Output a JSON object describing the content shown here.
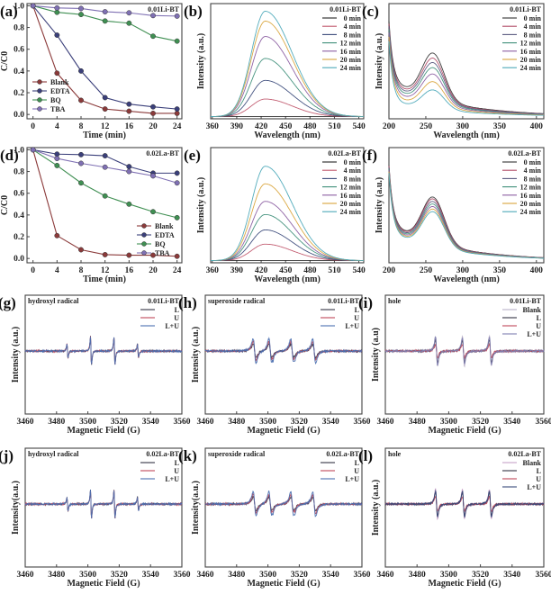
{
  "figure": {
    "panels_order": [
      "a",
      "b",
      "c",
      "d",
      "e",
      "f",
      "g",
      "h",
      "i",
      "j",
      "k",
      "l"
    ]
  },
  "chart_data": [
    {
      "id": "a",
      "panel_label": "(a)",
      "type": "line",
      "sample": "0.01Li-BT",
      "xlabel": "Time (min)",
      "ylabel": "C/C0",
      "x": [
        0,
        4,
        8,
        12,
        16,
        20,
        24
      ],
      "xticks": [
        0,
        4,
        8,
        12,
        16,
        20,
        24
      ],
      "yticks": [
        0.0,
        0.2,
        0.4,
        0.6,
        0.8,
        1.0
      ],
      "xlim": [
        -1,
        24.8
      ],
      "ylim": [
        -0.04,
        1.02
      ],
      "markers": true,
      "legend_position": "bottom-left",
      "series": [
        {
          "name": "Blank",
          "color": "#8b3a3a",
          "values": [
            1.0,
            0.38,
            0.13,
            0.05,
            0.03,
            0.01,
            0.01
          ]
        },
        {
          "name": "EDTA",
          "color": "#3a3f7a",
          "values": [
            1.0,
            0.73,
            0.4,
            0.155,
            0.095,
            0.07,
            0.05
          ]
        },
        {
          "name": "BQ",
          "color": "#3f8f52",
          "values": [
            1.0,
            0.94,
            0.92,
            0.86,
            0.84,
            0.72,
            0.675
          ]
        },
        {
          "name": "TBA",
          "color": "#7f70b3",
          "values": [
            1.0,
            0.98,
            0.975,
            0.945,
            0.935,
            0.91,
            0.905
          ]
        }
      ]
    },
    {
      "id": "b",
      "panel_label": "(b)",
      "type": "line",
      "sample": "0.01Li-BT",
      "xlabel": "Wavelength (nm)",
      "ylabel": "Intensity (a.u.)",
      "xticks": [
        360,
        390,
        420,
        450,
        480,
        510,
        540
      ],
      "xlim": [
        358,
        546
      ],
      "ylim": [
        0,
        1.05
      ],
      "curve_model": "fluorescence",
      "peak_nm": 425,
      "legend_position": "top-right",
      "series": [
        {
          "name": "0 min",
          "color": "#222222",
          "peak": 0.0
        },
        {
          "name": "4 min",
          "color": "#c0566b",
          "peak": 0.16
        },
        {
          "name": "8 min",
          "color": "#3a4a7a",
          "peak": 0.33
        },
        {
          "name": "12 min",
          "color": "#3f8f7a",
          "peak": 0.53
        },
        {
          "name": "16 min",
          "color": "#8a5ca0",
          "peak": 0.73
        },
        {
          "name": "20 min",
          "color": "#d9a43b",
          "peak": 0.87
        },
        {
          "name": "24 min",
          "color": "#4aa8b8",
          "peak": 0.96
        }
      ]
    },
    {
      "id": "c",
      "panel_label": "(c)",
      "type": "line",
      "sample": "0.01Li-BT",
      "xlabel": "Wavelength (nm)",
      "ylabel": "Intensity (a.u.)",
      "xticks": [
        200,
        250,
        300,
        350,
        400
      ],
      "xlim": [
        200,
        410
      ],
      "ylim": [
        0,
        1.05
      ],
      "curve_model": "uv-vis",
      "peak_nm": 260,
      "legend_position": "top-right",
      "series": [
        {
          "name": "0 min",
          "color": "#333333",
          "scale": 1.0
        },
        {
          "name": "4 min",
          "color": "#b04a66",
          "scale": 0.92
        },
        {
          "name": "8 min",
          "color": "#5a5a80",
          "scale": 0.85
        },
        {
          "name": "12 min",
          "color": "#3f8f7a",
          "scale": 0.77
        },
        {
          "name": "16 min",
          "color": "#8a5ca0",
          "scale": 0.67
        },
        {
          "name": "20 min",
          "color": "#d9a43b",
          "scale": 0.55
        },
        {
          "name": "24 min",
          "color": "#4aa8b8",
          "scale": 0.42
        }
      ]
    },
    {
      "id": "d",
      "panel_label": "(d)",
      "type": "line",
      "sample": "0.02La-BT",
      "xlabel": "Time (min)",
      "ylabel": "C/C0",
      "x": [
        0,
        4,
        8,
        12,
        16,
        20,
        24
      ],
      "xticks": [
        0,
        4,
        8,
        12,
        16,
        20,
        24
      ],
      "yticks": [
        0.0,
        0.2,
        0.4,
        0.6,
        0.8,
        1.0
      ],
      "xlim": [
        -1,
        24.8
      ],
      "ylim": [
        -0.04,
        1.02
      ],
      "markers": true,
      "legend_position": "bottom-right",
      "series": [
        {
          "name": "Blank",
          "color": "#8b3a3a",
          "values": [
            1.0,
            0.21,
            0.08,
            0.035,
            0.03,
            0.03,
            0.02
          ]
        },
        {
          "name": "EDTA",
          "color": "#3a3f7a",
          "values": [
            1.0,
            0.96,
            0.955,
            0.945,
            0.845,
            0.785,
            0.785
          ]
        },
        {
          "name": "BQ",
          "color": "#3f8f52",
          "values": [
            1.0,
            0.855,
            0.695,
            0.575,
            0.5,
            0.43,
            0.375
          ]
        },
        {
          "name": "TBA",
          "color": "#7f70b3",
          "values": [
            1.0,
            0.92,
            0.875,
            0.84,
            0.8,
            0.76,
            0.695
          ]
        }
      ]
    },
    {
      "id": "e",
      "panel_label": "(e)",
      "type": "line",
      "sample": "0.02La-BT",
      "xlabel": "Wavelength (nm)",
      "ylabel": "Intensity (a.u.)",
      "xticks": [
        360,
        390,
        420,
        450,
        480,
        510,
        540
      ],
      "xlim": [
        358,
        546
      ],
      "ylim": [
        0,
        1.05
      ],
      "curve_model": "fluorescence",
      "peak_nm": 425,
      "legend_position": "top-right",
      "series": [
        {
          "name": "0 min",
          "color": "#222222",
          "peak": 0.0
        },
        {
          "name": "4 min",
          "color": "#c0566b",
          "peak": 0.15
        },
        {
          "name": "8 min",
          "color": "#3a4a7a",
          "peak": 0.28
        },
        {
          "name": "12 min",
          "color": "#3f8f7a",
          "peak": 0.42
        },
        {
          "name": "16 min",
          "color": "#8a5ca0",
          "peak": 0.54
        },
        {
          "name": "20 min",
          "color": "#d9a43b",
          "peak": 0.7
        },
        {
          "name": "24 min",
          "color": "#4aa8b8",
          "peak": 0.86
        }
      ]
    },
    {
      "id": "f",
      "panel_label": "(f)",
      "type": "line",
      "sample": "0.02La-BT",
      "xlabel": "Wavelength (nm)",
      "ylabel": "Intensity (a.u.)",
      "xticks": [
        200,
        250,
        300,
        350,
        400
      ],
      "xlim": [
        200,
        410
      ],
      "ylim": [
        0,
        1.05
      ],
      "curve_model": "uv-vis",
      "peak_nm": 260,
      "legend_position": "top-right",
      "series": [
        {
          "name": "0 min",
          "color": "#333333",
          "scale": 1.0
        },
        {
          "name": "4 min",
          "color": "#b04a66",
          "scale": 0.97
        },
        {
          "name": "8 min",
          "color": "#5a5a80",
          "scale": 0.93
        },
        {
          "name": "12 min",
          "color": "#3f8f7a",
          "scale": 0.89
        },
        {
          "name": "16 min",
          "color": "#8a5ca0",
          "scale": 0.85
        },
        {
          "name": "20 min",
          "color": "#d9a43b",
          "scale": 0.81
        },
        {
          "name": "24 min",
          "color": "#4aa8b8",
          "scale": 0.77
        }
      ]
    },
    {
      "id": "g",
      "panel_label": "(g)",
      "type": "line",
      "sample": "0.01Li-BT",
      "species": "hydroxyl radical",
      "xlabel": "Magnetic Field (G)",
      "ylabel": "Intensity (a.u.)",
      "xticks": [
        3460,
        3480,
        3500,
        3520,
        3540,
        3560
      ],
      "xlim": [
        3460,
        3560
      ],
      "curve_model": "epr-hydroxyl",
      "lines_G": [
        3487,
        3502,
        3517,
        3532
      ],
      "relative_amplitudes": [
        1,
        2,
        2,
        1
      ],
      "legend_position": "top-right",
      "series": [
        {
          "name": "L",
          "color": "#333344",
          "scale": 1.0
        },
        {
          "name": "U",
          "color": "#c0485a",
          "scale": 0.97
        },
        {
          "name": "L+U",
          "color": "#4a6fb0",
          "scale": 0.99
        }
      ]
    },
    {
      "id": "h",
      "panel_label": "(h)",
      "type": "line",
      "sample": "0.01Li-BT",
      "species": "superoxide radical",
      "xlabel": "Magnetic Field (G)",
      "ylabel": "Intensity (a.u.)",
      "xticks": [
        3460,
        3480,
        3500,
        3520,
        3540,
        3560
      ],
      "xlim": [
        3460,
        3560
      ],
      "curve_model": "epr-superoxide",
      "lines_G": [
        3490,
        3500,
        3514,
        3528
      ],
      "legend_position": "top-right",
      "series": [
        {
          "name": "L",
          "color": "#333344",
          "scale": 0.55
        },
        {
          "name": "U",
          "color": "#c0485a",
          "scale": 0.75
        },
        {
          "name": "L+U",
          "color": "#4a6fb0",
          "scale": 1.0
        }
      ]
    },
    {
      "id": "i",
      "panel_label": "(i)",
      "type": "line",
      "sample": "0.01Li-BT",
      "species": "hole",
      "xlabel": "Magnetic Field (G)",
      "ylabel": "Intensity (a.u)",
      "xticks": [
        3460,
        3480,
        3500,
        3520,
        3540,
        3560
      ],
      "xlim": [
        3460,
        3560
      ],
      "curve_model": "epr-hole",
      "lines_G": [
        3492,
        3509,
        3526
      ],
      "legend_position": "top-right",
      "series": [
        {
          "name": "Blank",
          "color": "#b9b0c8",
          "scale": 1.0
        },
        {
          "name": "L",
          "color": "#333344",
          "scale": 0.75
        },
        {
          "name": "U",
          "color": "#c0485a",
          "scale": 0.45
        },
        {
          "name": "L+U",
          "color": "#7f7fb0",
          "scale": 0.9
        }
      ]
    },
    {
      "id": "j",
      "panel_label": "(j)",
      "type": "line",
      "sample": "0.02La-BT",
      "species": "hydroxyl radical",
      "xlabel": "Magnetic Field (G)",
      "ylabel": "Intensity(a.u.)",
      "xticks": [
        3460,
        3480,
        3500,
        3520,
        3540,
        3560
      ],
      "xlim": [
        3460,
        3560
      ],
      "curve_model": "epr-hydroxyl",
      "lines_G": [
        3487,
        3502,
        3517,
        3532
      ],
      "relative_amplitudes": [
        1,
        2,
        2,
        1
      ],
      "legend_position": "top-right",
      "series": [
        {
          "name": "L",
          "color": "#333344",
          "scale": 1.0
        },
        {
          "name": "U",
          "color": "#c0485a",
          "scale": 0.97
        },
        {
          "name": "L+U",
          "color": "#4a6fb0",
          "scale": 0.99
        }
      ]
    },
    {
      "id": "k",
      "panel_label": "(k)",
      "type": "line",
      "sample": "0.02La-BT",
      "species": "superoxide radical",
      "xlabel": "Magnetic Field (G)",
      "ylabel": "Intensity(a.u.)",
      "xticks": [
        3460,
        3480,
        3500,
        3520,
        3540,
        3560
      ],
      "xlim": [
        3460,
        3560
      ],
      "curve_model": "epr-superoxide",
      "lines_G": [
        3490,
        3500,
        3514,
        3528
      ],
      "legend_position": "top-right",
      "series": [
        {
          "name": "L",
          "color": "#333344",
          "scale": 0.55
        },
        {
          "name": "U",
          "color": "#c0485a",
          "scale": 0.75
        },
        {
          "name": "L+U",
          "color": "#4a6fb0",
          "scale": 1.0
        }
      ]
    },
    {
      "id": "l",
      "panel_label": "(l)",
      "type": "line",
      "sample": "0.02La-BT",
      "species": "hole",
      "xlabel": "Magnetic Field (G)",
      "ylabel": "Intensity (a.u.)",
      "xticks": [
        3460,
        3480,
        3500,
        3520,
        3540,
        3560
      ],
      "xlim": [
        3460,
        3560
      ],
      "curve_model": "epr-hole",
      "lines_G": [
        3492,
        3509,
        3526
      ],
      "legend_position": "top-right",
      "series": [
        {
          "name": "Blank",
          "color": "#c7a3c8",
          "scale": 1.0
        },
        {
          "name": "L",
          "color": "#333344",
          "scale": 0.8
        },
        {
          "name": "U",
          "color": "#c0485a",
          "scale": 0.5
        },
        {
          "name": "L+U",
          "color": "#3a4a7a",
          "scale": 0.85
        }
      ]
    }
  ]
}
